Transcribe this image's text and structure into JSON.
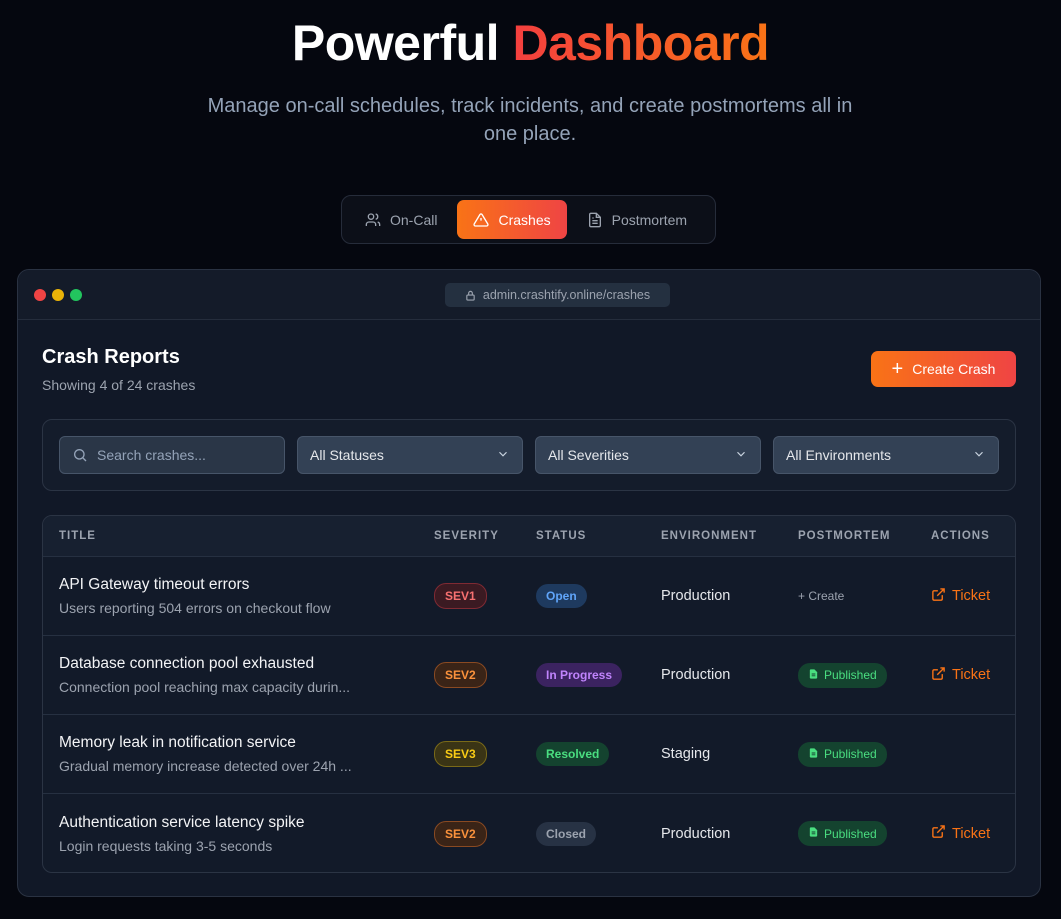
{
  "hero": {
    "title_plain": "Powerful",
    "title_accent": "Dashboard",
    "subtitle": "Manage on-call schedules, track incidents, and create postmortems all in one place."
  },
  "tabs": [
    {
      "label": "On-Call",
      "icon": "users-icon"
    },
    {
      "label": "Crashes",
      "icon": "warning-icon",
      "active": true
    },
    {
      "label": "Postmortem",
      "icon": "document-icon"
    }
  ],
  "window": {
    "url": "admin.crashtify.online/crashes"
  },
  "page": {
    "title": "Crash Reports",
    "showing": "Showing 4 of 24 crashes",
    "create_label": "Create Crash"
  },
  "filters": {
    "search_placeholder": "Search crashes...",
    "status": "All Statuses",
    "severity": "All Severities",
    "environment": "All Environments"
  },
  "table": {
    "headers": [
      "TITLE",
      "SEVERITY",
      "STATUS",
      "ENVIRONMENT",
      "POSTMORTEM",
      "ACTIONS"
    ],
    "rows": [
      {
        "title": "API Gateway timeout errors",
        "desc": "Users reporting 504 errors on checkout flow",
        "severity": "SEV1",
        "status": "Open",
        "environment": "Production",
        "postmortem": "+ Create",
        "action": "Ticket"
      },
      {
        "title": "Database connection pool exhausted",
        "desc": "Connection pool reaching max capacity durin...",
        "severity": "SEV2",
        "status": "In Progress",
        "environment": "Production",
        "postmortem": "Published",
        "action": "Ticket"
      },
      {
        "title": "Memory leak in notification service",
        "desc": "Gradual memory increase detected over 24h ...",
        "severity": "SEV3",
        "status": "Resolved",
        "environment": "Staging",
        "postmortem": "Published",
        "action": ""
      },
      {
        "title": "Authentication service latency spike",
        "desc": "Login requests taking 3-5 seconds",
        "severity": "SEV2",
        "status": "Closed",
        "environment": "Production",
        "postmortem": "Published",
        "action": "Ticket"
      }
    ]
  },
  "colors": {
    "accent_start": "#f97316",
    "accent_end": "#ef4444",
    "sev1": "#f87171",
    "sev2": "#fb923c",
    "sev3": "#facc15",
    "open": "#60a5fa",
    "in_progress": "#c084fc",
    "resolved": "#4ade80",
    "closed": "#9ca3af"
  }
}
